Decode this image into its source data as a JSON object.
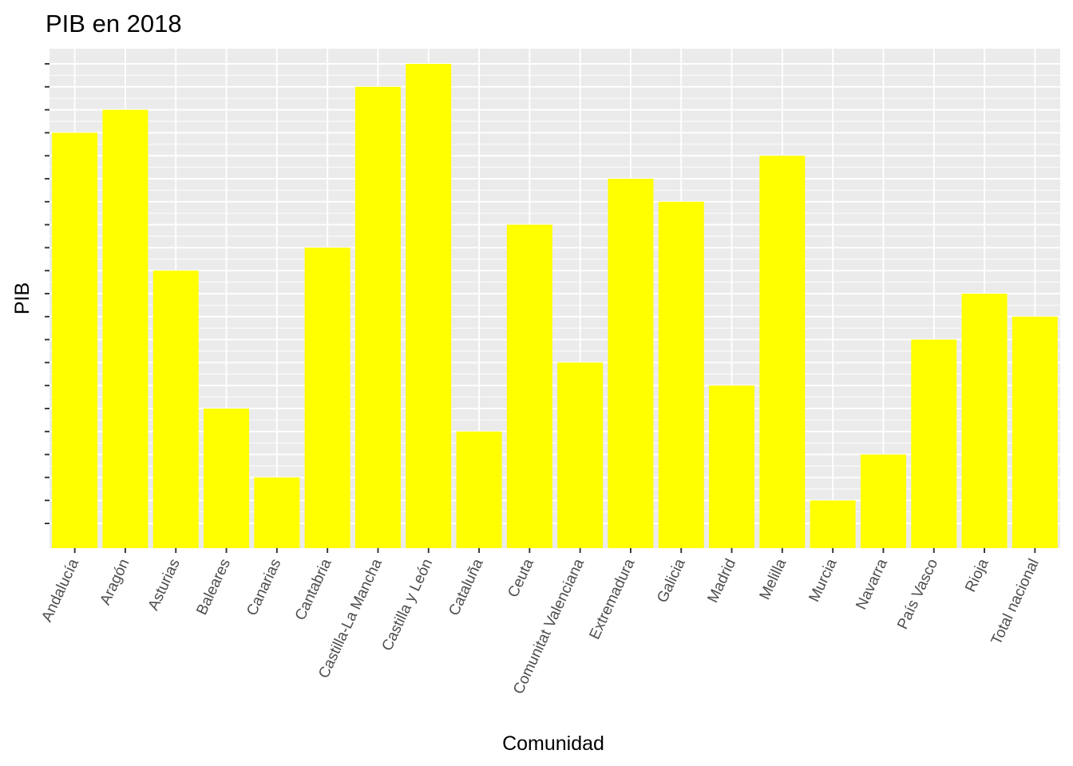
{
  "chart_data": {
    "type": "bar",
    "title": "PIB en 2018",
    "xlabel": "Comunidad",
    "ylabel": "PIB",
    "categories": [
      "Andalucía",
      "Aragón",
      "Asturias",
      "Baleares",
      "Canarias",
      "Cantabria",
      "Castilla-La Mancha",
      "Castilla y León",
      "Cataluña",
      "Ceuta",
      "Comunitat Valenciana",
      "Extremadura",
      "Galicia",
      "Madrid",
      "Melilla",
      "Murcia",
      "Navarra",
      "País Vasco",
      "Rioja",
      "Total nacional"
    ],
    "values": [
      18,
      19,
      12,
      6,
      3,
      13,
      20,
      21,
      5,
      14,
      8,
      16,
      15,
      7,
      17,
      2,
      4,
      9,
      11,
      10
    ],
    "ylim": [
      1,
      21
    ],
    "y_ticks": [
      1,
      2,
      3,
      4,
      5,
      6,
      7,
      8,
      9,
      10,
      11,
      12,
      13,
      14,
      15,
      16,
      17,
      18,
      19,
      20,
      21
    ],
    "y_tick_labels_shown": false,
    "grid": true,
    "legend": "none",
    "colors": {
      "bar": "#FFFF00",
      "panel": "#EBEBEB",
      "grid": "#FFFFFF",
      "tick_text": "#4D4D4D",
      "axis_tick": "#333333"
    }
  }
}
